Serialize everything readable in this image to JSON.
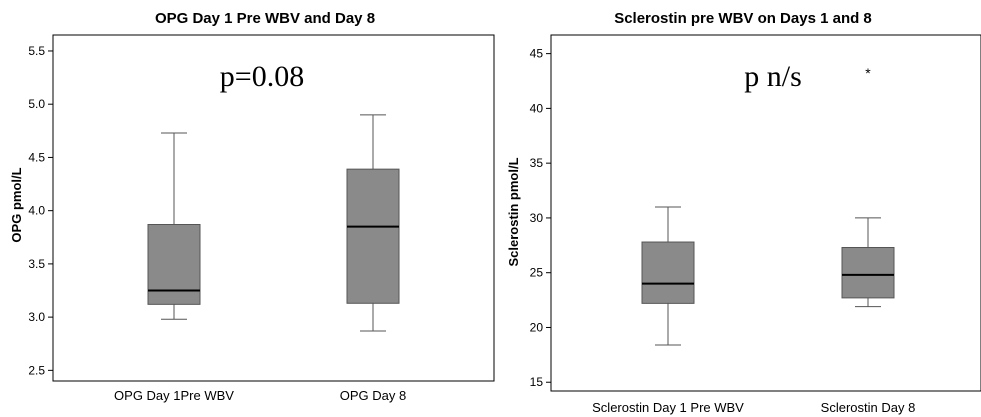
{
  "chart_data": [
    {
      "type": "box",
      "title": "OPG Day 1 Pre WBV and Day 8",
      "xlabel": "",
      "ylabel": "OPG pmol/L",
      "ylim": [
        2.4,
        5.65
      ],
      "yticks": [
        "2.5",
        "3.0",
        "3.5",
        "4.0",
        "4.5",
        "5.0",
        "5.5"
      ],
      "annotation": "p=0.08",
      "categories": [
        "OPG Day 1Pre WBV",
        "OPG Day 8"
      ],
      "boxes": [
        {
          "min": 2.98,
          "q1": 3.12,
          "median": 3.25,
          "q3": 3.87,
          "max": 4.73,
          "outliers": []
        },
        {
          "min": 2.87,
          "q1": 3.13,
          "median": 3.85,
          "q3": 4.39,
          "max": 4.9,
          "outliers": []
        }
      ]
    },
    {
      "type": "box",
      "title": "Sclerostin pre WBV on Days 1 and 8",
      "xlabel": "",
      "ylabel": "Sclerostin pmol/L",
      "ylim": [
        14.2,
        46.7
      ],
      "yticks": [
        "15",
        "20",
        "25",
        "30",
        "35",
        "40",
        "45"
      ],
      "annotation": "p n/s",
      "categories": [
        "Sclerostin Day 1 Pre WBV",
        "Sclerostin Day 8"
      ],
      "boxes": [
        {
          "min": 18.4,
          "q1": 22.2,
          "median": 24.0,
          "q3": 27.8,
          "max": 31.0,
          "outliers": []
        },
        {
          "min": 21.9,
          "q1": 22.7,
          "median": 24.8,
          "q3": 27.3,
          "max": 30.0,
          "outliers": [
            {
              "value": 43.5,
              "symbol": "*"
            }
          ]
        }
      ]
    }
  ],
  "colors": {
    "box_fill": "#8a8a8a",
    "box_stroke": "#555555",
    "median": "#000000",
    "frame": "#000000"
  }
}
